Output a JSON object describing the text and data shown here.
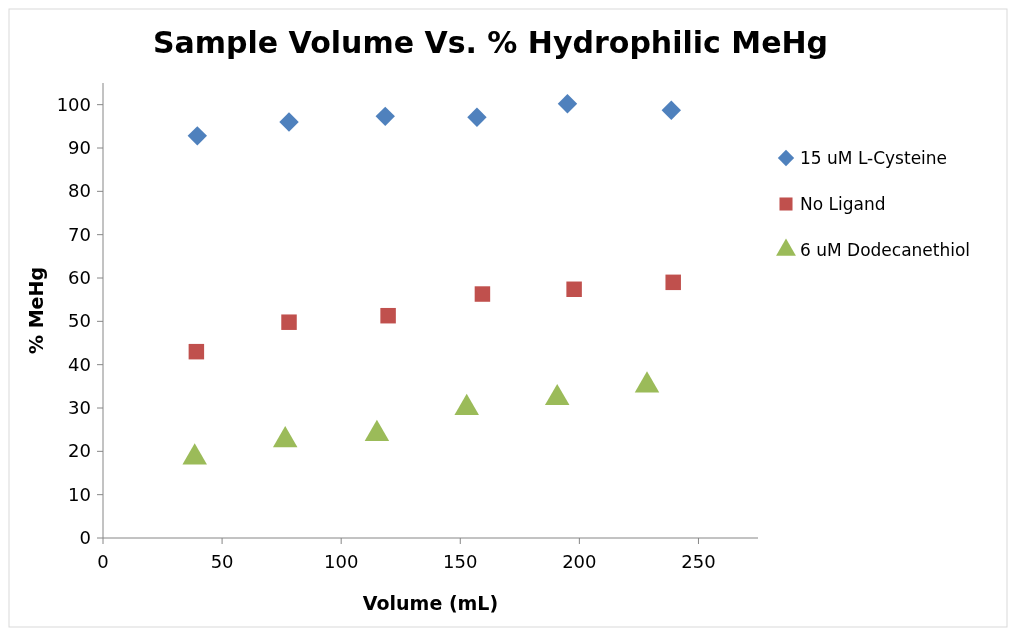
{
  "chart_data": {
    "type": "scatter",
    "title": "Sample Volume Vs. % Hydrophilic MeHg",
    "xlabel": "Volume (mL)",
    "ylabel": "% MeHg",
    "xlim": [
      0,
      275
    ],
    "xticks": [
      0,
      50,
      100,
      150,
      200,
      250
    ],
    "ylim": [
      0,
      105
    ],
    "yticks": [
      0,
      10,
      20,
      30,
      40,
      50,
      60,
      70,
      80,
      90,
      100
    ],
    "grid": false,
    "legend": "right",
    "series": [
      {
        "name": "15 uM L-Cysteine",
        "color": "#4f81bd",
        "marker": "diamond",
        "x": [
          39.6,
          78.1,
          118.5,
          157,
          195,
          238.6
        ],
        "values": [
          92.8,
          96.0,
          97.3,
          97.1,
          100.2,
          98.7
        ]
      },
      {
        "name": "No Ligand",
        "color": "#c0504d",
        "marker": "square",
        "x": [
          39.2,
          78.1,
          119.7,
          159.3,
          197.8,
          239.4
        ],
        "values": [
          43.0,
          49.8,
          51.3,
          56.3,
          57.4,
          59.0
        ]
      },
      {
        "name": "6 uM Dodecanethiol",
        "color": "#9bbb59",
        "marker": "triangle",
        "x": [
          38.5,
          76.5,
          115,
          152.7,
          190.7,
          228.4
        ],
        "values": [
          18.6,
          22.6,
          24.0,
          30.0,
          32.3,
          35.2
        ]
      }
    ]
  }
}
